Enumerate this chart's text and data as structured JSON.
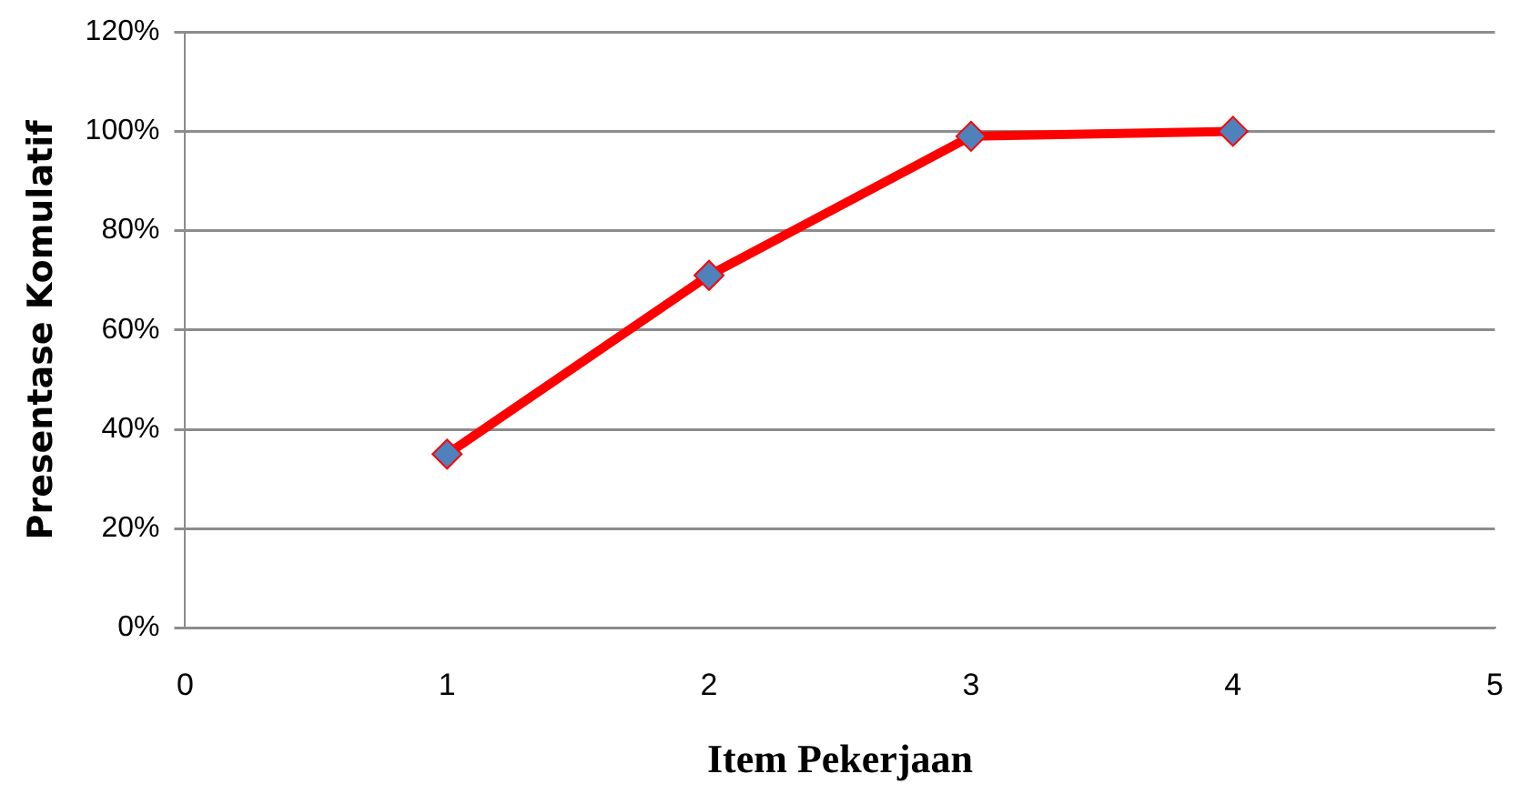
{
  "chart_data": {
    "type": "line",
    "xlabel": "Item Pekerjaan",
    "ylabel": "Presentase Komulatif",
    "x": [
      1,
      2,
      3,
      4
    ],
    "series": [
      {
        "color": "#ff0000",
        "values": [
          35,
          71,
          99,
          100
        ]
      }
    ],
    "xlim": [
      0,
      5
    ],
    "xticks": [
      0,
      1,
      2,
      3,
      4,
      5
    ],
    "ylim": [
      0,
      120
    ],
    "yticks": [
      {
        "value": 0,
        "label": "0%"
      },
      {
        "value": 20,
        "label": "20%"
      },
      {
        "value": 40,
        "label": "40%"
      },
      {
        "value": 60,
        "label": "60%"
      },
      {
        "value": 80,
        "label": "80%"
      },
      {
        "value": 100,
        "label": "100%"
      },
      {
        "value": 120,
        "label": "120%"
      }
    ],
    "grid": "y",
    "marker": "diamond",
    "line_style": "solid",
    "legend": false
  }
}
